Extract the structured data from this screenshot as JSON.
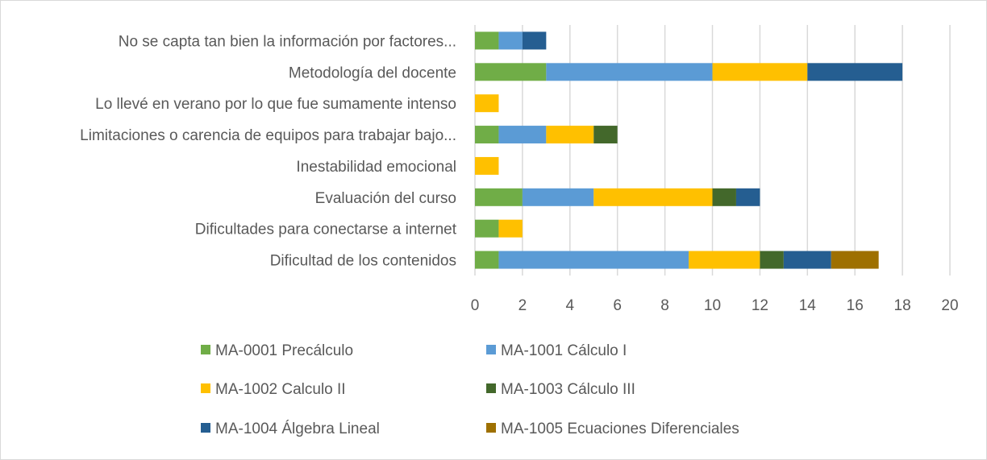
{
  "chart_data": {
    "type": "bar",
    "orientation": "horizontal",
    "stacked": true,
    "categories": [
      "No se capta tan bien la información por factores...",
      "Metodología del docente",
      "Lo llevé en verano por lo que fue sumamente intenso",
      "Limitaciones o carencia de equipos para trabajar bajo...",
      "Inestabilidad emocional",
      "Evaluación del curso",
      "Dificultades para conectarse a internet",
      "Dificultad de los contenidos"
    ],
    "series": [
      {
        "name": "MA-0001 Precálculo",
        "color": "#70AD47",
        "values": [
          1,
          3,
          0,
          1,
          0,
          2,
          1,
          1
        ]
      },
      {
        "name": "MA-1001 Cálculo I",
        "color": "#5B9BD5",
        "values": [
          1,
          7,
          0,
          2,
          0,
          3,
          0,
          8
        ]
      },
      {
        "name": "MA-1002 Calculo II",
        "color": "#FFC000",
        "values": [
          0,
          4,
          1,
          2,
          1,
          5,
          1,
          3
        ]
      },
      {
        "name": "MA-1003 Cálculo III",
        "color": "#43682B",
        "values": [
          0,
          0,
          0,
          1,
          0,
          1,
          0,
          1
        ]
      },
      {
        "name": "MA-1004 Álgebra Lineal",
        "color": "#255E91",
        "values": [
          1,
          4,
          0,
          0,
          0,
          1,
          0,
          2
        ]
      },
      {
        "name": "MA-1005 Ecuaciones Diferenciales",
        "color": "#9E7000",
        "values": [
          0,
          0,
          0,
          0,
          0,
          0,
          0,
          2
        ]
      }
    ],
    "xlim": [
      0,
      20
    ],
    "xticks": [
      "0",
      "2",
      "4",
      "6",
      "8",
      "10",
      "12",
      "14",
      "16",
      "18",
      "20"
    ],
    "grid": true,
    "legend": "bottom",
    "title": "",
    "xlabel": "",
    "ylabel": ""
  }
}
